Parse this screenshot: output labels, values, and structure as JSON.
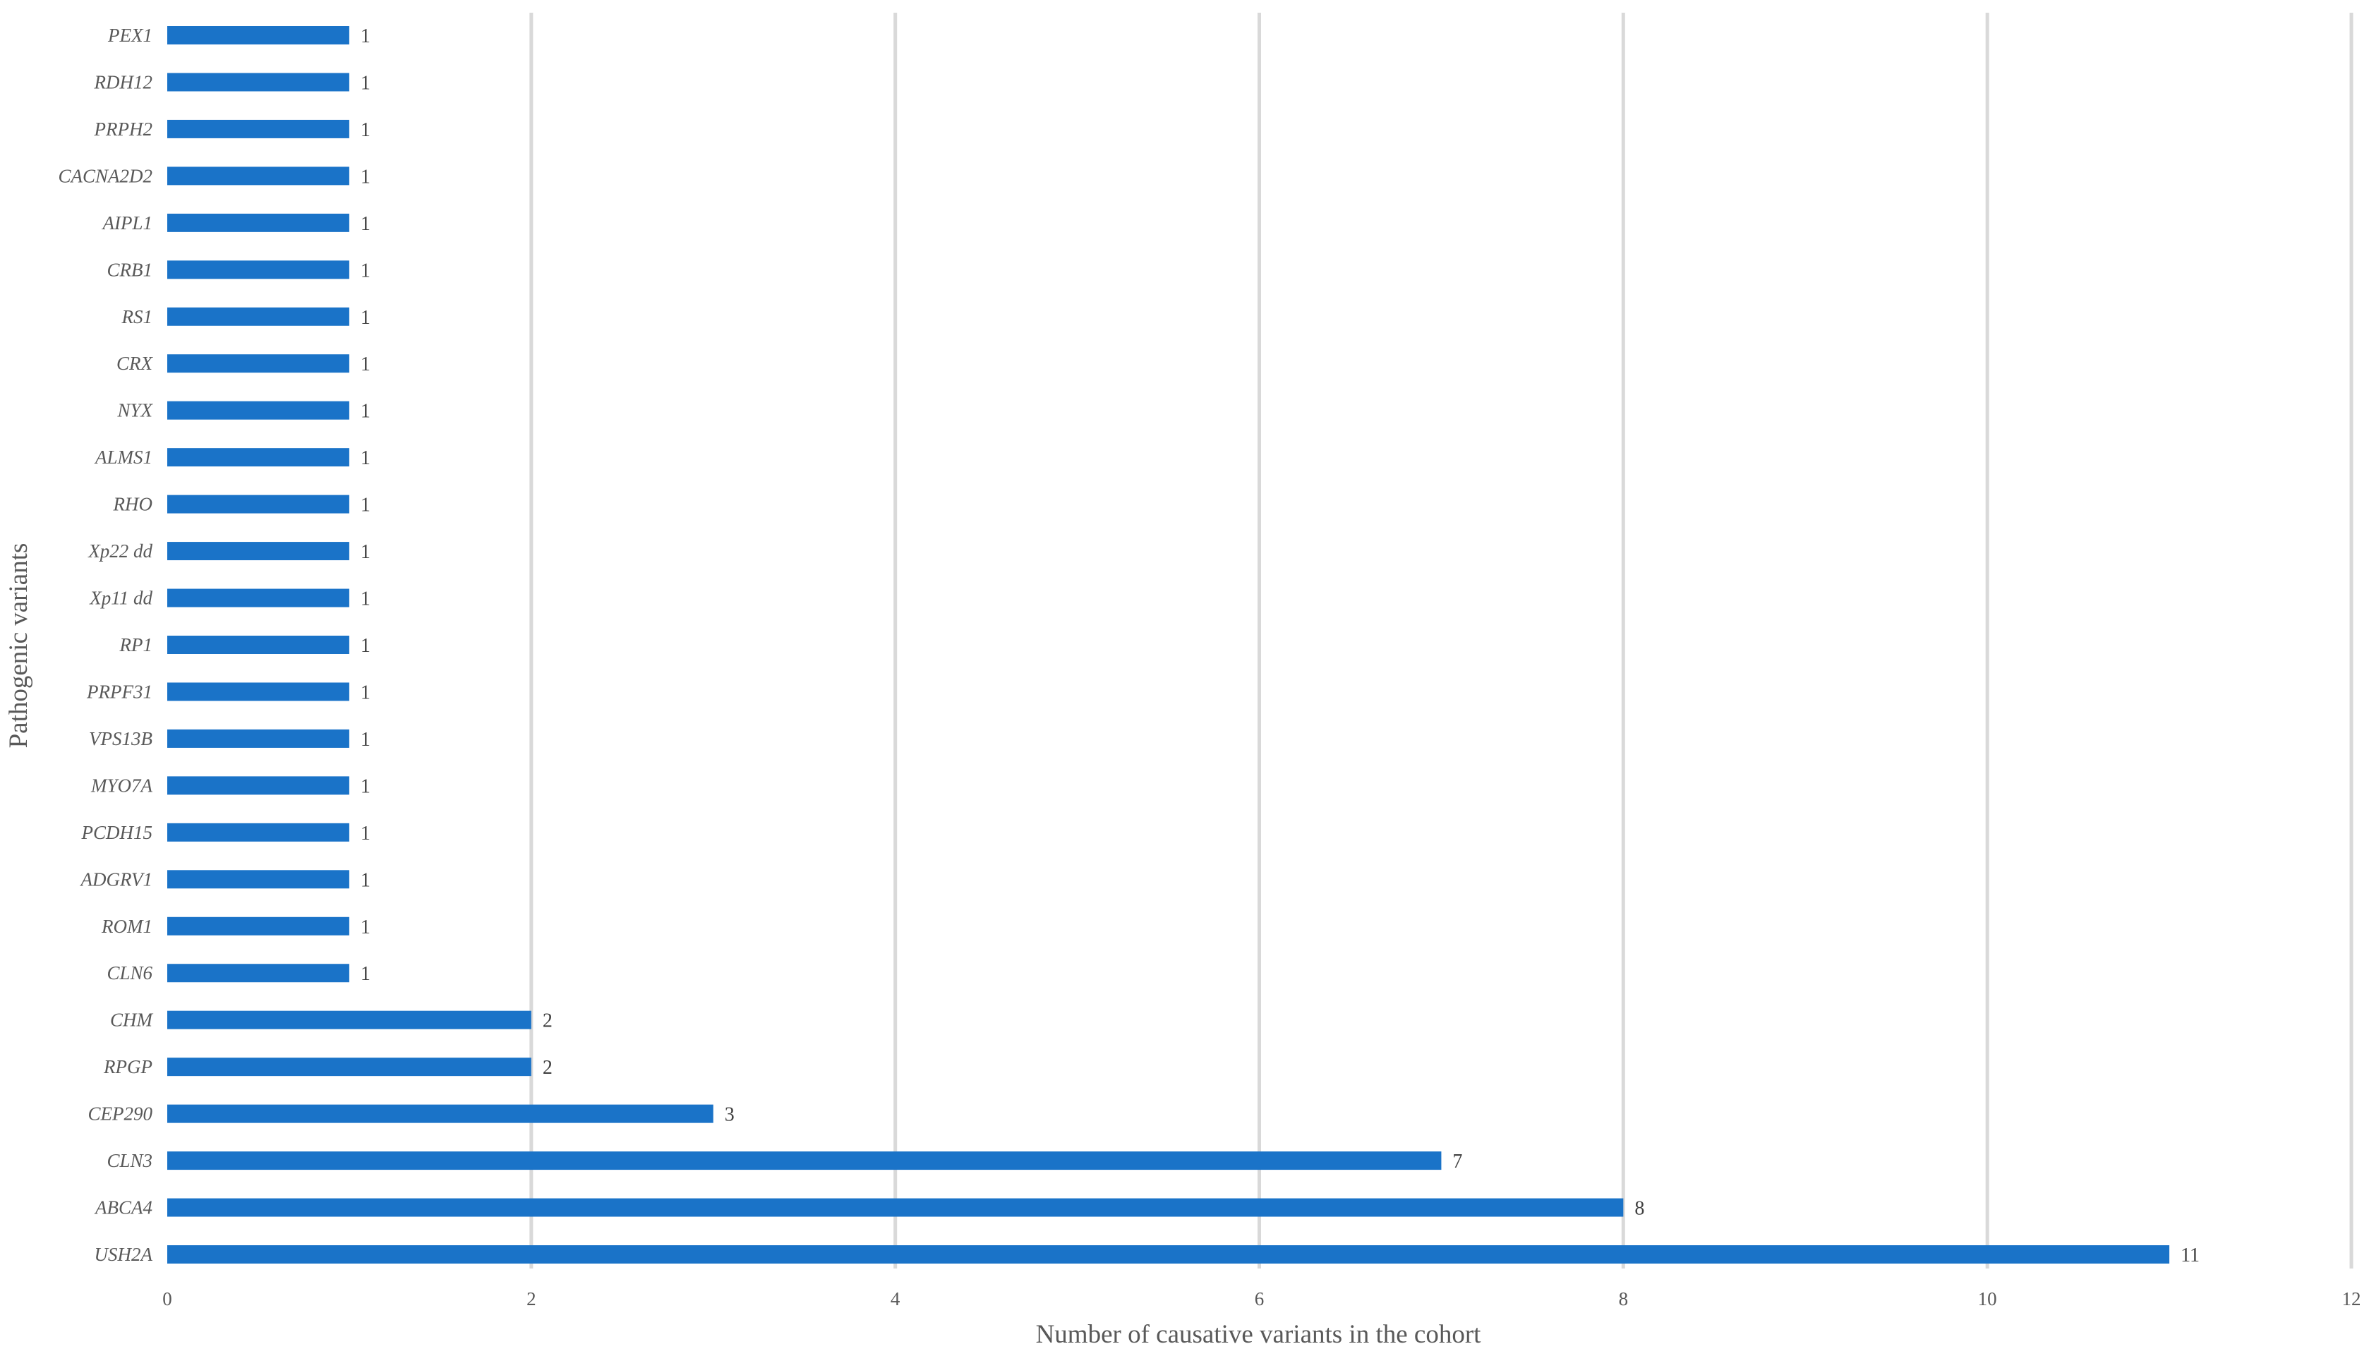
{
  "chart_data": {
    "type": "bar",
    "orientation": "horizontal",
    "categories": [
      "USH2A",
      "ABCA4",
      "CLN3",
      "CEP290",
      "RPGP",
      "CHM",
      "CLN6",
      "ROM1",
      "ADGRV1",
      "PCDH15",
      "MYO7A",
      "VPS13B",
      "PRPF31",
      "RP1",
      "Xp11 dd",
      "Xp22 dd",
      "RHO",
      "ALMS1",
      "NYX",
      "CRX",
      "RS1",
      "CRB1",
      "AIPL1",
      "CACNA2D2",
      "PRPH2",
      "RDH12",
      "PEX1"
    ],
    "values": [
      11,
      8,
      7,
      3,
      2,
      2,
      1,
      1,
      1,
      1,
      1,
      1,
      1,
      1,
      1,
      1,
      1,
      1,
      1,
      1,
      1,
      1,
      1,
      1,
      1,
      1,
      1
    ],
    "data_labels": [
      "11",
      "8",
      "7",
      "3",
      "2",
      "2",
      "1",
      "1",
      "1",
      "1",
      "1",
      "1",
      "1",
      "1",
      "1",
      "1",
      "1",
      "1",
      "1",
      "1",
      "1",
      "1",
      "1",
      "1",
      "1",
      "1",
      "1"
    ],
    "xlabel": "Number of causative variants in the cohort",
    "ylabel": "Pathogenic variants",
    "xlim": [
      0,
      12
    ],
    "xticks": [
      "0",
      "2",
      "4",
      "6",
      "8",
      "10",
      "12"
    ],
    "grid": "vertical",
    "legend": "none",
    "colors": {
      "bar": "#1a73c8",
      "grid": "#d9d9d9",
      "text": "#595959"
    }
  }
}
